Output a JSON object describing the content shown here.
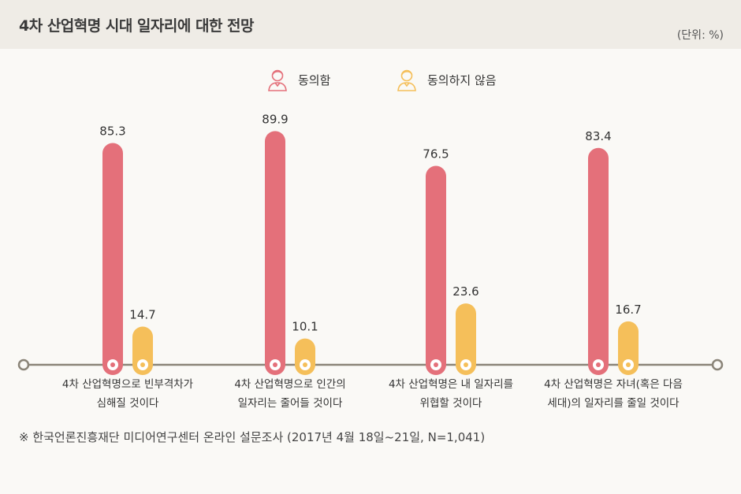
{
  "title": "4차 산업혁명 시대 일자리에 대한 전망",
  "unit_label": "(단위: %)",
  "footnote": "※ 한국언론진흥재단 미디어연구센터 온라인 설문조사 (2017년 4월 18일~21일, N=1,041)",
  "colors": {
    "agree": "#e4707a",
    "disagree": "#f5bf5a",
    "axis": "#8a8478"
  },
  "chart_data": {
    "type": "bar",
    "title": "4차 산업혁명 시대 일자리에 대한 전망",
    "ylabel": "(단위: %)",
    "ylim": [
      0,
      100
    ],
    "categories": [
      [
        "4차 산업혁명으로 빈부격차가",
        "심해질 것이다"
      ],
      [
        "4차 산업혁명으로 인간의",
        "일자리는 줄어들 것이다"
      ],
      [
        "4차 산업혁명은 내 일자리를",
        "위협할 것이다"
      ],
      [
        "4차 산업혁명은 자녀(혹은 다음",
        "세대)의 일자리를 줄일 것이다"
      ]
    ],
    "series": [
      {
        "name": "동의함",
        "values": [
          85.3,
          89.9,
          76.5,
          83.4
        ]
      },
      {
        "name": "동의하지 않음",
        "values": [
          14.7,
          10.1,
          23.6,
          16.7
        ]
      }
    ],
    "value_labels": [
      [
        "85.3",
        "89.9",
        "76.5",
        "83.4"
      ],
      [
        "14.7",
        "10.1",
        "23.6",
        "16.7"
      ]
    ]
  }
}
